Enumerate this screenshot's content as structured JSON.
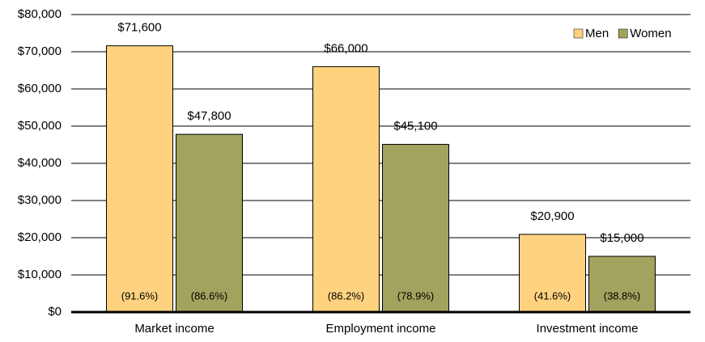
{
  "chart_data": {
    "type": "bar",
    "categories": [
      "Market income",
      "Employment income",
      "Investment income"
    ],
    "series": [
      {
        "name": "Men",
        "color": "#ffd27f",
        "values": [
          71600,
          66000,
          20900
        ],
        "value_labels": [
          "$71,600",
          "$66,000",
          "$20,900"
        ],
        "share_labels": [
          "(91.6%)",
          "(86.2%)",
          "(41.6%)"
        ]
      },
      {
        "name": "Women",
        "color": "#a2a35f",
        "values": [
          47800,
          45100,
          15000
        ],
        "value_labels": [
          "$47,800",
          "$45,100",
          "$15,000"
        ],
        "share_labels": [
          "(86.6%)",
          "(78.9%)",
          "(38.8%)"
        ]
      }
    ],
    "ylim": [
      0,
      80000
    ],
    "yticks": [
      {
        "value": 0,
        "label": "$0"
      },
      {
        "value": 10000,
        "label": "$10,000"
      },
      {
        "value": 20000,
        "label": "$20,000"
      },
      {
        "value": 30000,
        "label": "$30,000"
      },
      {
        "value": 40000,
        "label": "$40,000"
      },
      {
        "value": 50000,
        "label": "$50,000"
      },
      {
        "value": 60000,
        "label": "$60,000"
      },
      {
        "value": 70000,
        "label": "$70,000"
      },
      {
        "value": 80000,
        "label": "$80,000"
      }
    ],
    "grid": true,
    "legend": "top-right"
  }
}
